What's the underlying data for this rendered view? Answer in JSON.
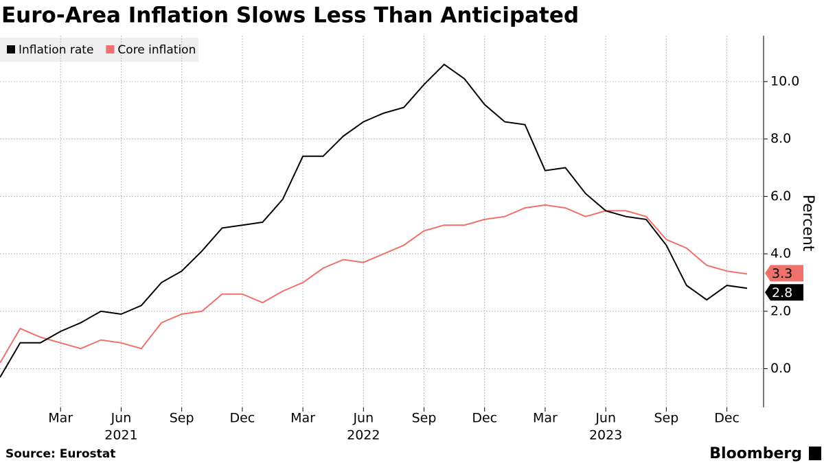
{
  "chart_data": {
    "type": "line",
    "title": "Euro-Area Inflation Slows Less Than Anticipated",
    "source": "Source: Eurostat",
    "brand": "Bloomberg",
    "y_label": "Percent",
    "categories": [
      null,
      null,
      null,
      "Mar",
      null,
      null,
      "Jun",
      null,
      null,
      "Sep",
      null,
      null,
      "Dec",
      null,
      null,
      "Mar",
      null,
      null,
      "Jun",
      null,
      null,
      "Sep",
      null,
      null,
      "Dec",
      null,
      null,
      "Mar",
      null,
      null,
      "Jun",
      null,
      null,
      "Sep",
      null,
      null,
      "Dec",
      null
    ],
    "years": [
      "2021",
      "2022",
      "2023"
    ],
    "series": [
      {
        "name": "Inflation rate",
        "color": "#000000",
        "values": [
          -0.3,
          0.9,
          0.9,
          1.3,
          1.6,
          2.0,
          1.9,
          2.2,
          3.0,
          3.4,
          4.1,
          4.9,
          5.0,
          5.1,
          5.9,
          7.4,
          7.4,
          8.1,
          8.6,
          8.9,
          9.1,
          9.9,
          10.6,
          10.1,
          9.2,
          8.6,
          8.5,
          6.9,
          7.0,
          6.1,
          5.5,
          5.3,
          5.2,
          4.3,
          2.9,
          2.4,
          2.9,
          2.8
        ]
      },
      {
        "name": "Core inflation",
        "color": "#f0706b",
        "values": [
          0.2,
          1.4,
          1.1,
          0.9,
          0.7,
          1.0,
          0.9,
          0.7,
          1.6,
          1.9,
          2.0,
          2.6,
          2.6,
          2.3,
          2.7,
          3.0,
          3.5,
          3.8,
          3.7,
          4.0,
          4.3,
          4.8,
          5.0,
          5.0,
          5.2,
          5.3,
          5.6,
          5.7,
          5.6,
          5.3,
          5.5,
          5.5,
          5.3,
          4.5,
          4.2,
          3.6,
          3.4,
          3.3
        ]
      }
    ],
    "ylim": [
      -1.35,
      11.6
    ],
    "yticks": [
      {
        "value": 0,
        "label": "0.0"
      },
      {
        "value": 2,
        "label": "2.0"
      },
      {
        "value": 4,
        "label": "4.0"
      },
      {
        "value": 6,
        "label": "6.0"
      },
      {
        "value": 8,
        "label": "8.0"
      },
      {
        "value": 10,
        "label": "10.0"
      }
    ],
    "grid": true
  }
}
